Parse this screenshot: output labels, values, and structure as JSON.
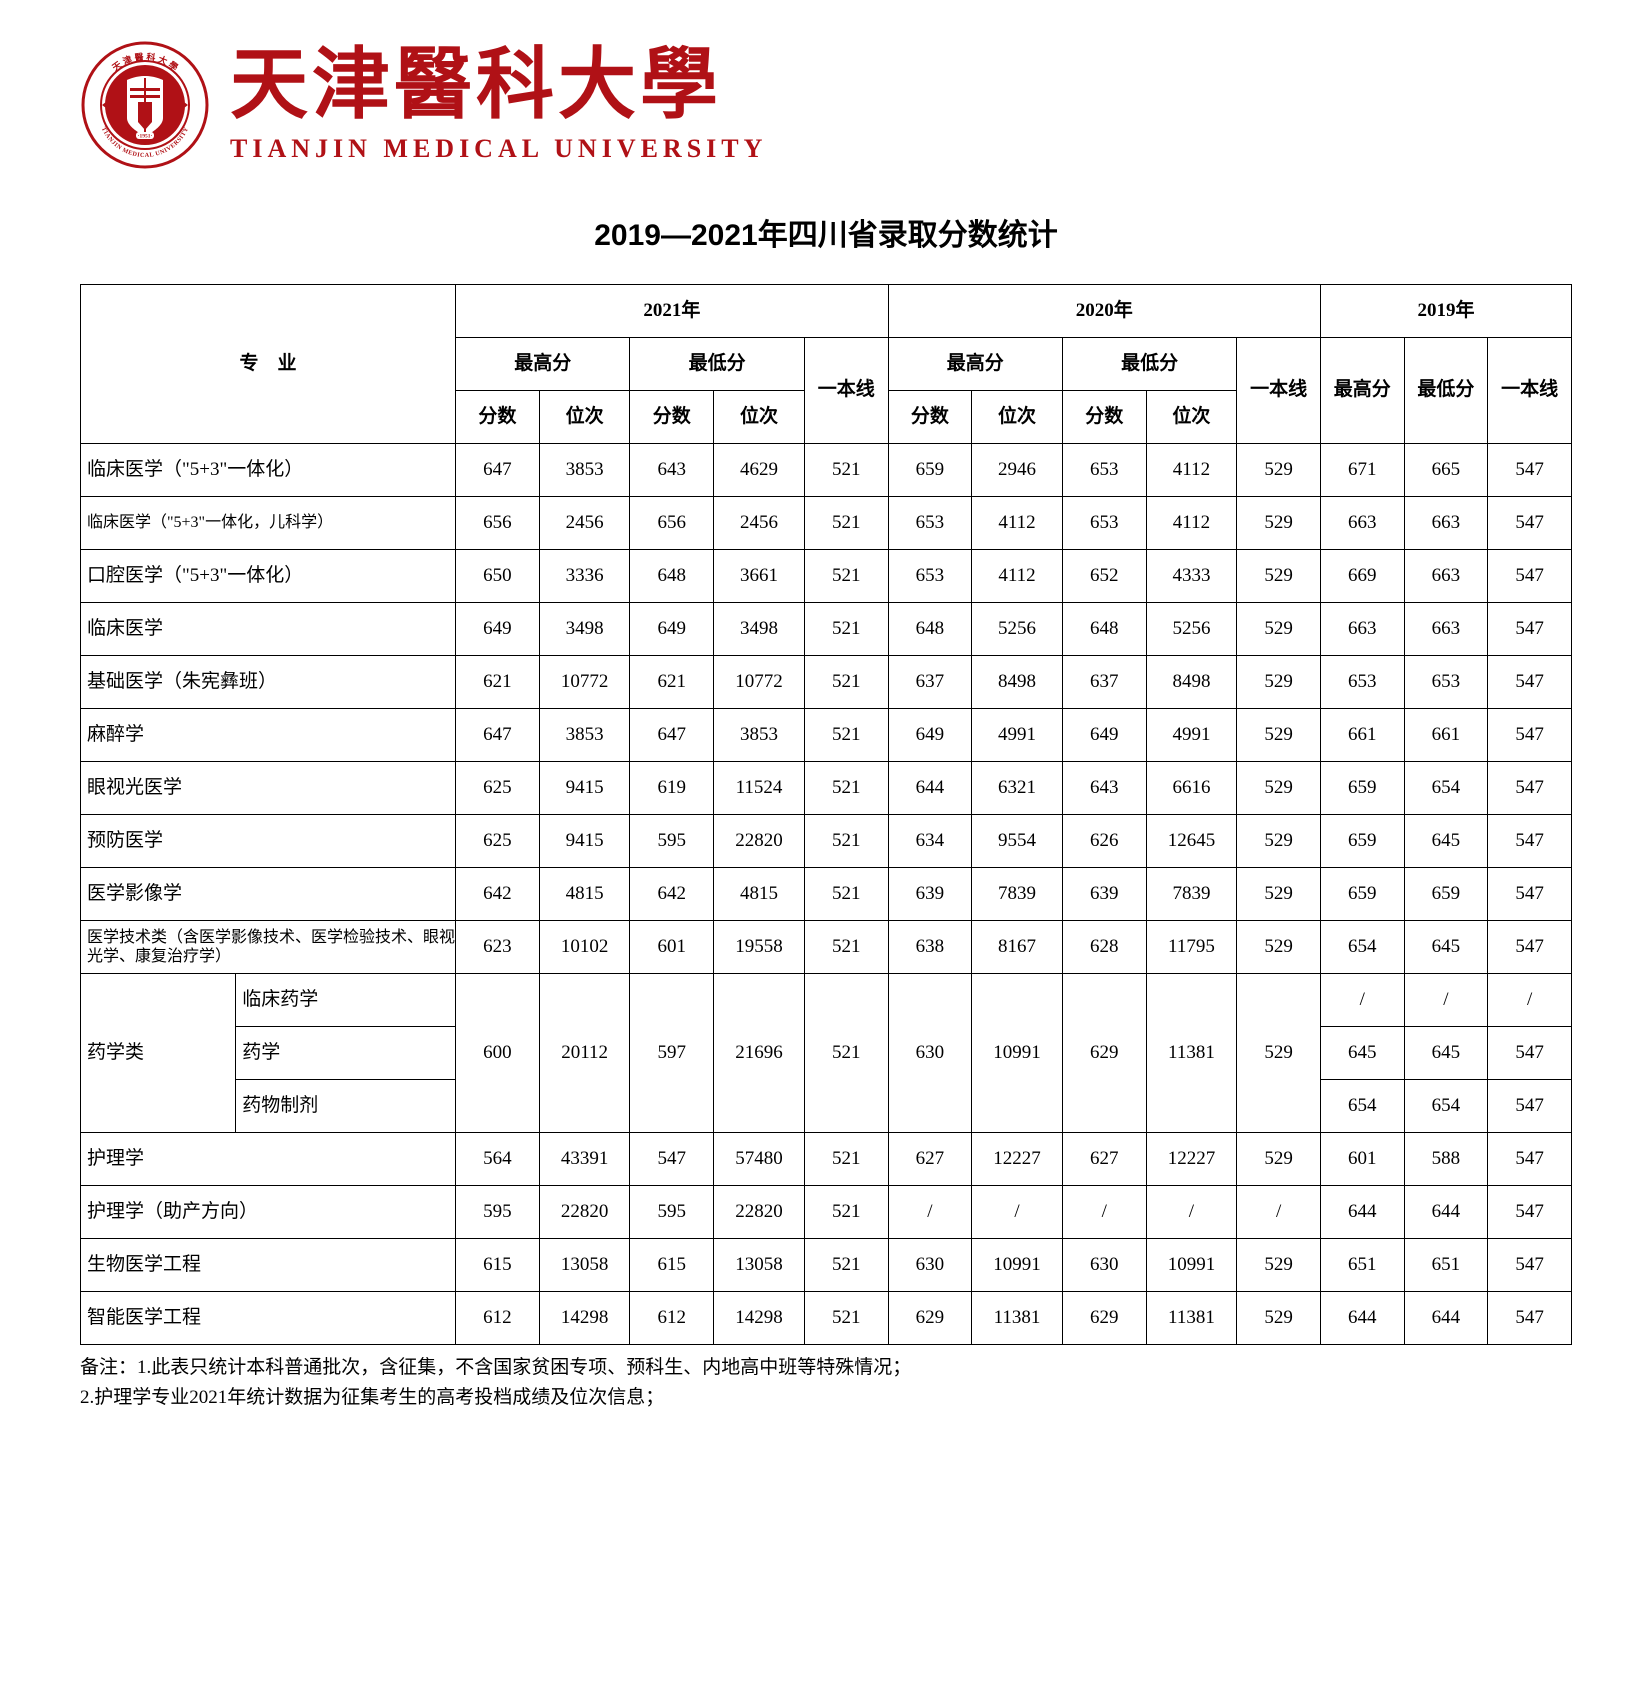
{
  "header": {
    "university_cn": "天津醫科大學",
    "university_en": "TIANJIN MEDICAL UNIVERSITY",
    "logo_outer_text": "TIANJIN MEDICAL UNIVERSITY",
    "logo_year": "1951",
    "logo_color": "#b01116"
  },
  "title": "2019—2021年四川省录取分数统计",
  "table": {
    "header": {
      "major": "专　业",
      "y2021": "2021年",
      "y2020": "2020年",
      "y2019": "2019年",
      "max": "最高分",
      "min": "最低分",
      "line": "一本线",
      "score": "分数",
      "rank": "位次"
    },
    "rows_simple": [
      {
        "major": "临床医学（\"5+3\"一体化）",
        "d": [
          "647",
          "3853",
          "643",
          "4629",
          "521",
          "659",
          "2946",
          "653",
          "4112",
          "529",
          "671",
          "665",
          "547"
        ]
      },
      {
        "major": "临床医学（\"5+3\"一体化，儿科学）",
        "small": true,
        "d": [
          "656",
          "2456",
          "656",
          "2456",
          "521",
          "653",
          "4112",
          "653",
          "4112",
          "529",
          "663",
          "663",
          "547"
        ]
      },
      {
        "major": "口腔医学（\"5+3\"一体化）",
        "d": [
          "650",
          "3336",
          "648",
          "3661",
          "521",
          "653",
          "4112",
          "652",
          "4333",
          "529",
          "669",
          "663",
          "547"
        ]
      },
      {
        "major": "临床医学",
        "d": [
          "649",
          "3498",
          "649",
          "3498",
          "521",
          "648",
          "5256",
          "648",
          "5256",
          "529",
          "663",
          "663",
          "547"
        ]
      },
      {
        "major": "基础医学（朱宪彝班）",
        "d": [
          "621",
          "10772",
          "621",
          "10772",
          "521",
          "637",
          "8498",
          "637",
          "8498",
          "529",
          "653",
          "653",
          "547"
        ]
      },
      {
        "major": "麻醉学",
        "d": [
          "647",
          "3853",
          "647",
          "3853",
          "521",
          "649",
          "4991",
          "649",
          "4991",
          "529",
          "661",
          "661",
          "547"
        ]
      },
      {
        "major": "眼视光医学",
        "d": [
          "625",
          "9415",
          "619",
          "11524",
          "521",
          "644",
          "6321",
          "643",
          "6616",
          "529",
          "659",
          "654",
          "547"
        ]
      },
      {
        "major": "预防医学",
        "d": [
          "625",
          "9415",
          "595",
          "22820",
          "521",
          "634",
          "9554",
          "626",
          "12645",
          "529",
          "659",
          "645",
          "547"
        ]
      },
      {
        "major": "医学影像学",
        "d": [
          "642",
          "4815",
          "642",
          "4815",
          "521",
          "639",
          "7839",
          "639",
          "7839",
          "529",
          "659",
          "659",
          "547"
        ]
      },
      {
        "major": "医学技术类（含医学影像技术、医学检验技术、眼视光学、康复治疗学）",
        "small": true,
        "d": [
          "623",
          "10102",
          "601",
          "19558",
          "521",
          "638",
          "8167",
          "628",
          "11795",
          "529",
          "654",
          "645",
          "547"
        ]
      }
    ],
    "pharm_group": {
      "group_label": "药学类",
      "sub": [
        "临床药学",
        "药学",
        "药物制剂"
      ],
      "shared": [
        "600",
        "20112",
        "597",
        "21696",
        "521",
        "630",
        "10991",
        "629",
        "11381",
        "529"
      ],
      "y2019": [
        [
          "/",
          "/",
          "/"
        ],
        [
          "645",
          "645",
          "547"
        ],
        [
          "654",
          "654",
          "547"
        ]
      ]
    },
    "rows_tail": [
      {
        "major": "护理学",
        "d": [
          "564",
          "43391",
          "547",
          "57480",
          "521",
          "627",
          "12227",
          "627",
          "12227",
          "529",
          "601",
          "588",
          "547"
        ]
      },
      {
        "major": "护理学（助产方向）",
        "d": [
          "595",
          "22820",
          "595",
          "22820",
          "521",
          "/",
          "/",
          "/",
          "/",
          "/",
          "644",
          "644",
          "547"
        ]
      },
      {
        "major": "生物医学工程",
        "d": [
          "615",
          "13058",
          "615",
          "13058",
          "521",
          "630",
          "10991",
          "630",
          "10991",
          "529",
          "651",
          "651",
          "547"
        ]
      },
      {
        "major": "智能医学工程",
        "d": [
          "612",
          "14298",
          "612",
          "14298",
          "521",
          "629",
          "11381",
          "629",
          "11381",
          "529",
          "644",
          "644",
          "547"
        ]
      }
    ]
  },
  "notes": {
    "n1": "备注：1.此表只统计本科普通批次，含征集，不含国家贫困专项、预科生、内地高中班等特殊情况；",
    "n2": "2.护理学专业2021年统计数据为征集考生的高考投档成绩及位次信息；"
  }
}
